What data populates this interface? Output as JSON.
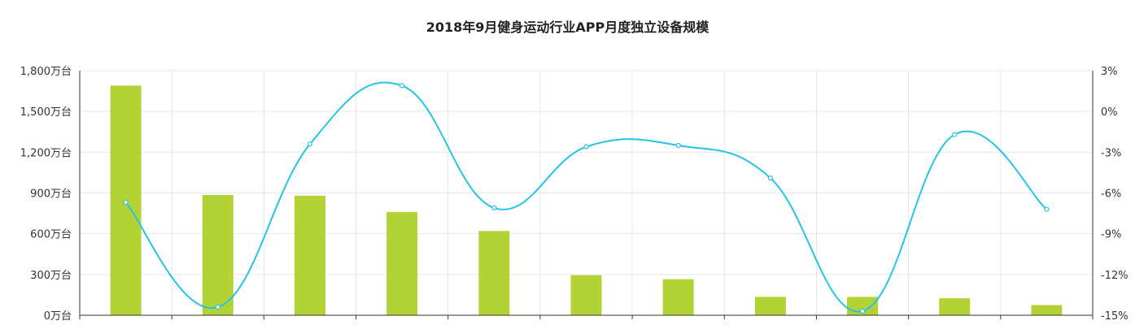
{
  "chart_data": {
    "type": "bar",
    "title": "2018年9月健身运动行业APP月度独立设备规模",
    "categories": [
      "",
      "",
      "",
      "",
      "",
      "",
      "",
      "",
      "",
      "",
      ""
    ],
    "series": [
      {
        "name": "",
        "type": "bar",
        "axis": "left",
        "color": "#b3d334",
        "values": [
          1690,
          885,
          880,
          760,
          620,
          295,
          265,
          135,
          135,
          125,
          75
        ]
      },
      {
        "name": "",
        "type": "line",
        "axis": "right",
        "color": "#27c2e8",
        "values": [
          -6.7,
          -14.4,
          -2.4,
          1.9,
          -7.1,
          -2.6,
          -2.5,
          -4.9,
          -14.7,
          -1.7,
          -7.2
        ]
      }
    ],
    "y_left": {
      "min": 0,
      "max": 1800,
      "ticks": [
        "0万台",
        "300万台",
        "600万台",
        "900万台",
        "1,200万台",
        "1,500万台",
        "1,800万台"
      ]
    },
    "y_right": {
      "min": -15,
      "max": 3,
      "ticks": [
        "-15%",
        "-12%",
        "-9%",
        "-6%",
        "-3%",
        "0%",
        "3%"
      ]
    },
    "grid": true
  }
}
